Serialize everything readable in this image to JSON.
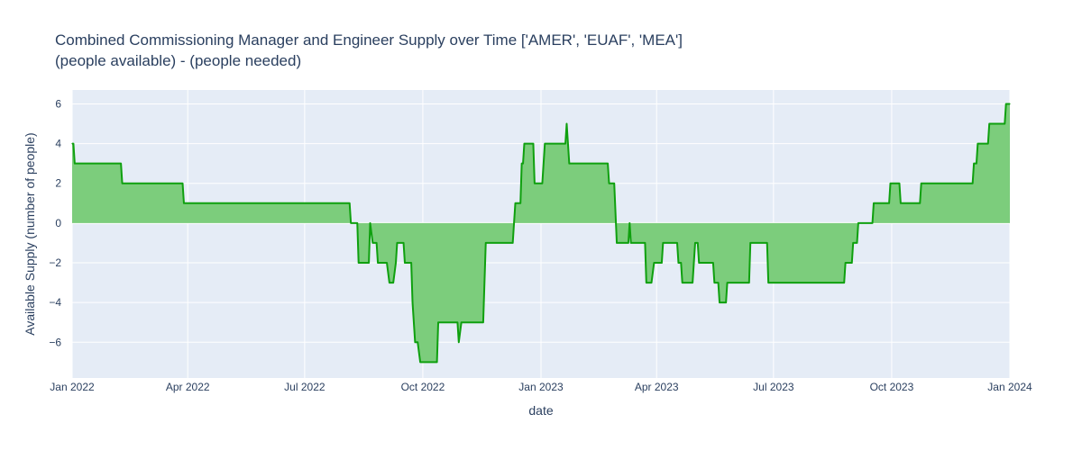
{
  "chart_data": {
    "type": "area",
    "title": "Combined Commissioning Manager and Engineer Supply over Time   ['AMER', 'EUAF', 'MEA']",
    "subtitle": "(people available) - (people needed)",
    "xlabel": "date",
    "ylabel": "Available Supply (number of people)",
    "xlim": [
      "2022-01-01",
      "2024-01-01"
    ],
    "ylim": [
      -7.8,
      6.7
    ],
    "x_ticks": [
      {
        "date": "2022-01-01",
        "label": "Jan 2022"
      },
      {
        "date": "2022-04-01",
        "label": "Apr 2022"
      },
      {
        "date": "2022-07-01",
        "label": "Jul 2022"
      },
      {
        "date": "2022-10-01",
        "label": "Oct 2022"
      },
      {
        "date": "2023-01-01",
        "label": "Jan 2023"
      },
      {
        "date": "2023-04-01",
        "label": "Apr 2023"
      },
      {
        "date": "2023-07-01",
        "label": "Jul 2023"
      },
      {
        "date": "2023-10-01",
        "label": "Oct 2023"
      },
      {
        "date": "2024-01-01",
        "label": "Jan 2024"
      }
    ],
    "y_ticks": [
      6,
      4,
      2,
      0,
      -2,
      -4,
      -6
    ],
    "grid": true,
    "colors": {
      "line": "#0fa00f",
      "fill": "#78cb78",
      "plot_bg": "#e5ecf6",
      "grid": "#ffffff"
    },
    "series": [
      {
        "points": [
          [
            "2022-01-01",
            4
          ],
          [
            "2022-01-02",
            4
          ],
          [
            "2022-01-03",
            3
          ],
          [
            "2022-02-08",
            3
          ],
          [
            "2022-02-09",
            2
          ],
          [
            "2022-03-28",
            2
          ],
          [
            "2022-03-29",
            1
          ],
          [
            "2022-08-05",
            1
          ],
          [
            "2022-08-06",
            0
          ],
          [
            "2022-08-11",
            0
          ],
          [
            "2022-08-12",
            -2
          ],
          [
            "2022-08-20",
            -2
          ],
          [
            "2022-08-21",
            0
          ],
          [
            "2022-08-23",
            -1
          ],
          [
            "2022-08-26",
            -1
          ],
          [
            "2022-08-27",
            -2
          ],
          [
            "2022-09-03",
            -2
          ],
          [
            "2022-09-05",
            -3
          ],
          [
            "2022-09-08",
            -3
          ],
          [
            "2022-09-10",
            -2
          ],
          [
            "2022-09-11",
            -1
          ],
          [
            "2022-09-16",
            -1
          ],
          [
            "2022-09-17",
            -2
          ],
          [
            "2022-09-22",
            -2
          ],
          [
            "2022-09-23",
            -4
          ],
          [
            "2022-09-25",
            -6
          ],
          [
            "2022-09-27",
            -6
          ],
          [
            "2022-09-29",
            -7
          ],
          [
            "2022-10-12",
            -7
          ],
          [
            "2022-10-13",
            -5
          ],
          [
            "2022-10-28",
            -5
          ],
          [
            "2022-10-29",
            -6
          ],
          [
            "2022-10-31",
            -5
          ],
          [
            "2022-11-17",
            -5
          ],
          [
            "2022-11-19",
            -1
          ],
          [
            "2022-12-10",
            -1
          ],
          [
            "2022-12-11",
            0
          ],
          [
            "2022-12-12",
            1
          ],
          [
            "2022-12-16",
            1
          ],
          [
            "2022-12-17",
            3
          ],
          [
            "2022-12-18",
            3
          ],
          [
            "2022-12-19",
            4
          ],
          [
            "2022-12-26",
            4
          ],
          [
            "2022-12-27",
            2
          ],
          [
            "2023-01-02",
            2
          ],
          [
            "2023-01-04",
            4
          ],
          [
            "2023-01-20",
            4
          ],
          [
            "2023-01-21",
            5
          ],
          [
            "2023-01-23",
            3
          ],
          [
            "2023-02-22",
            3
          ],
          [
            "2023-02-23",
            2
          ],
          [
            "2023-02-27",
            2
          ],
          [
            "2023-03-01",
            -1
          ],
          [
            "2023-03-10",
            -1
          ],
          [
            "2023-03-11",
            0
          ],
          [
            "2023-03-12",
            -1
          ],
          [
            "2023-03-23",
            -1
          ],
          [
            "2023-03-24",
            -3
          ],
          [
            "2023-03-28",
            -3
          ],
          [
            "2023-03-30",
            -2
          ],
          [
            "2023-04-05",
            -2
          ],
          [
            "2023-04-06",
            -1
          ],
          [
            "2023-04-17",
            -1
          ],
          [
            "2023-04-18",
            -2
          ],
          [
            "2023-04-20",
            -2
          ],
          [
            "2023-04-21",
            -3
          ],
          [
            "2023-04-29",
            -3
          ],
          [
            "2023-04-30",
            -2
          ],
          [
            "2023-05-01",
            -1
          ],
          [
            "2023-05-03",
            -1
          ],
          [
            "2023-05-04",
            -2
          ],
          [
            "2023-05-15",
            -2
          ],
          [
            "2023-05-16",
            -3
          ],
          [
            "2023-05-19",
            -3
          ],
          [
            "2023-05-20",
            -4
          ],
          [
            "2023-05-25",
            -4
          ],
          [
            "2023-05-26",
            -3
          ],
          [
            "2023-06-12",
            -3
          ],
          [
            "2023-06-13",
            -1
          ],
          [
            "2023-06-26",
            -1
          ],
          [
            "2023-06-27",
            -3
          ],
          [
            "2023-08-25",
            -3
          ],
          [
            "2023-08-26",
            -2
          ],
          [
            "2023-08-31",
            -2
          ],
          [
            "2023-09-01",
            -1
          ],
          [
            "2023-09-04",
            -1
          ],
          [
            "2023-09-05",
            0
          ],
          [
            "2023-09-16",
            0
          ],
          [
            "2023-09-17",
            1
          ],
          [
            "2023-09-29",
            1
          ],
          [
            "2023-09-30",
            2
          ],
          [
            "2023-10-07",
            2
          ],
          [
            "2023-10-08",
            1
          ],
          [
            "2023-10-23",
            1
          ],
          [
            "2023-10-24",
            2
          ],
          [
            "2023-12-03",
            2
          ],
          [
            "2023-12-04",
            3
          ],
          [
            "2023-12-06",
            3
          ],
          [
            "2023-12-07",
            4
          ],
          [
            "2023-12-15",
            4
          ],
          [
            "2023-12-16",
            5
          ],
          [
            "2023-12-28",
            5
          ],
          [
            "2023-12-29",
            6
          ],
          [
            "2024-01-01",
            6
          ]
        ]
      }
    ]
  }
}
